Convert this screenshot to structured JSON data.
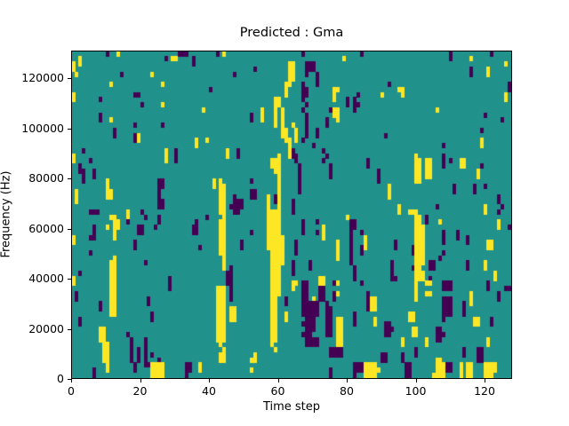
{
  "figure": {
    "background": "#ffffff"
  },
  "chart_data": {
    "type": "heatmap",
    "title": "Predicted : Gma",
    "xlabel": "Time step",
    "ylabel": "Frequency (Hz)",
    "xlim": [
      0,
      128
    ],
    "ylim": [
      0,
      131072
    ],
    "x_ticks": [
      0,
      20,
      40,
      60,
      80,
      100,
      120
    ],
    "y_ticks": [
      0,
      20000,
      40000,
      60000,
      80000,
      100000,
      120000
    ],
    "grid_cols": 128,
    "grid_rows": 64,
    "legend": "none",
    "colormap": "viridis-3-level",
    "value_colors": {
      ".": "#21918c",
      "p": "#440154",
      "y": "#fde725"
    },
    "grid_legend": "rows top-to-bottom = high-to-low frequency; '.'=mid(teal) 'p'=low(purple) 'y'=high(yellow)",
    "grid": [
      [
        "..........p..y..",
        "...............p",
        "pp........p.y...",
        "................",
        "...p............",
        "....p...........",
        "..............p.",
        "..........p....."
      ],
      [
        "..y.............",
        "...........p.yy.",
        "...p............",
        "................",
        "...............y",
        "................",
        "..............p.",
        "....y..........."
      ],
      [
        "y.y.............",
        "................",
        "...p............",
        "...............y",
        "y...ppp.........",
        "................",
        "................",
        "..............y."
      ],
      [
        "y...............",
        "................",
        "................",
        ".....p.........y",
        "y...ppp.........",
        "................",
        "................",
        "....p....y......"
      ],
      [
        ".y............p.",
        ".......y........",
        "...............p",
        "...............y",
        "y...p..p........",
        "................",
        "................",
        "....p....y......"
      ],
      [
        "................",
        "................",
        "................",
        "...............y",
        "y......p........",
        "................",
        "................",
        "................"
      ],
      [
        "...........y....",
        "..........y.....",
        "................",
        "..............yy",
        "...p...p........",
        "............p...",
        "................",
        "...............p"
      ],
      [
        "................",
        "................",
        "........p.......",
        "..............y.",
        "...pp.......yy..",
        "...............y",
        "y...............",
        "...............p"
      ],
      [
        "y...............",
        "..pp............",
        "................",
        "..............y.",
        "...pp.......y...",
        "...p......y.....",
        "y...............",
        "..............y."
      ],
      [
        "y.......p.......",
        "................",
        "................",
        "...........yy...",
        "...p........y...",
        "p.p.............",
        "................",
        "..............y."
      ],
      [
        "................",
        "....p.....y.....",
        "................",
        "...........yy...",
        "....p...........",
        "p.pp............",
        "................",
        "................"
      ],
      [
        "................",
        "................",
        "......y.........",
        ".......y...y.y..",
        "...p.......pyy..",
        "..p.............",
        "..........y.....",
        "................"
      ],
      [
        "........p.......",
        "................",
        "................",
        "....p..y...y.y..",
        "....p.......yy..",
        "................",
        "................",
        "........p......."
      ],
      [
        "........p..y....",
        "................",
        "................",
        "....p..y...y.y..",
        "....p.....p..y..",
        "................",
        "................",
        ".............p.."
      ],
      [
        "................",
        "..p.......p.....",
        "................",
        "...........y.y..",
        "y...p.....p.....",
        "................",
        "................",
        "................"
      ],
      [
        "............p...",
        "................",
        "................",
        ".............yy.",
        ".y..p..p........",
        "................",
        "................",
        ".......p........"
      ],
      [
        "............p...",
        "..py............",
        "................",
        ".............yy.",
        ".y..p..p........",
        "...........p....",
        "................",
        "................"
      ],
      [
        "................",
        "..py............",
        "....y..y........",
        "..............yy",
        ".y.p............",
        "................",
        "................",
        ".......y........"
      ],
      [
        "................",
        "................",
        "....y...........",
        "...............y",
        "......p.........",
        "................",
        "............p...",
        ".......y........"
      ],
      [
        "...p............",
        "...........y..p.",
        ".............y..",
        "p..............y",
        "p........p......",
        "................",
        "................",
        "................"
      ],
      [
        "y...............",
        "...........y..p.",
        ".............y..",
        "p...........y..y",
        "pp........p.....",
        "................",
        "....y.......p...",
        "................"
      ],
      [
        "y....p..........",
        "...........y..p.",
        "................",
        "..........yyy...",
        ".p.......p......",
        "......p.........",
        "....yy.yy...p.p.",
        ".yy............."
      ],
      [
        "..p.............",
        "................",
        "................",
        "..........yyy...",
        "..p........p....",
        "......p.........",
        "....yy.yy...p...",
        ".yy....p........"
      ],
      [
        "..pp..p.........",
        "................",
        "................",
        "...........yy...",
        "..p........p....",
        ".........p......",
        "....yy.yy.......",
        "......y........."
      ],
      [
        "...p..p.........",
        "................",
        "................",
        "............y...",
        "..p........p....",
        ".........p......",
        "....yy.yy.......",
        "......y........."
      ],
      [
        "...p......y.....",
        ".........pp.....",
        ".........y.y....",
        "....p.......y...",
        "..p.............",
        ".........p......",
        "....yy..........",
        "................"
      ],
      [
        "..........y.....",
        ".........pp.....",
        ".........y.yy...",
        "............y...",
        "..p.............",
        "............y...",
        "...............p",
        ".....p..p......."
      ],
      [
        ".y........yy....",
        ".........p......",
        "...........yy...",
        "....pp......y...",
        "..p.............",
        "............y...",
        "...............p",
        ".....p.........."
      ],
      [
        ".y........yy....",
        ".........p......",
        "...........yy..p",
        "....pp...y.py...",
        "................",
        "............y...",
        "................",
        "............p..."
      ],
      [
        ".y..............",
        ".........pp.....",
        "...........yy..p",
        "pp.......y.py...",
        "p...............",
        "................",
        "................",
        "............p..."
      ],
      [
        "................",
        ".........pp.....",
        "...........yy.pp",
        "pp.......y..y...",
        "p...............",
        "...............y",
        "..........p.....",
        "........y....p.."
      ],
      [
        ".....ppp........",
        "y...p...........",
        "...........yy..p",
        "p........yyyy...",
        "p...............",
        "...............y",
        "..yyy...........",
        "........y...p..."
      ],
      [
        "...........yy...",
        "y....p...p......",
        ".......p....y...",
        ".........yyyy...",
        "................",
        "y...............",
        "....yy.p........",
        "................"
      ],
      [
        "............yy..",
        "p........p......",
        "....p......yy...",
        ".........yyyy...",
        "...p...p........",
        ".pp.............",
        "....yy.p...y....",
        "............y..."
      ],
      [
        "......p...y.yy..",
        "...pp...p.......",
        "...pp......yy...",
        ".........yyyy...",
        "...p.....y......",
        ".pp.............",
        "....yyy.........",
        "............y..p"
      ],
      [
        "......p.....y...",
        "...pp...........",
        "...pp......yy...",
        "....p....yyyy...",
        "...p...p.y......",
        ".p..p...........",
        "....yyy.....p...",
        "p..............."
      ],
      [
        "y....pp.....y...",
        "................",
        "...........yy...",
        ".........yyyyy..",
        ".........y......",
        ".p...y..........",
        "....yyy.....p...",
        "p..p............"
      ],
      [
        "y...............",
        "..p.............",
        "...........yy...",
        ".p.......yyyyy..",
        ".p...........y..",
        ".p...y........p.",
        "....yyy.....p...",
        "...p.....yy....."
      ],
      [
        "................",
        "..p.............",
        ".....p.....yy...",
        ".p.......yyyyy..",
        ".p...........y..",
        ".p..py........p.",
        "...pyyy.........",
        ".........yy....."
      ],
      [
        ".....p..........",
        "................",
        "...........yy...",
        "..........yyyy..",
        ".p...........y..",
        ".p..p...........",
        "...pyyy.....p...",
        "................"
      ],
      [
        "............y...",
        "................",
        "............y...",
        "..........yyyy..",
        ".............y..",
        ".p..............",
        "....yyy....p....",
        "................"
      ],
      [
        "...........yy...",
        ".....p..........",
        "............y...",
        "..........yyyy..",
        "p....p..........",
        ".p...........p..",
        "....yyy.pp......",
        "...p....y......."
      ],
      [
        "...........yy...",
        "................",
        "............y.p.",
        "..........yyy...",
        "p....p..........",
        "..p..........p..",
        "...pyy..pp......",
        "...p....y......."
      ],
      [
        "..p........yy...",
        "................",
        ".............pp.",
        "..........yyy...",
        "p...............",
        "..p..........p..",
        "....yyy.........",
        "...........y...."
      ],
      [
        "y..........yy...",
        "............p...",
        ".............pp.",
        "..........yyy...",
        "........yy......",
        "..p..........pp.",
        "....yyy.p.......",
        "...........y...."
      ],
      [
        "y..........yy...",
        "............p...",
        ".............pp.",
        "..........yyy...",
        "yy.pp...yy..py..",
        "....p...........",
        "....y..yy...ppp.",
        ".........p......"
      ],
      [
        "...........yy...",
        "............p...",
        "..........yyy.p.",
        "..........yyy...",
        "y..pp...pp......",
        "................",
        "....y.......ppp.",
        ".........p....pp"
      ],
      [
        ".p.........yy...",
        "................",
        "..........yyy.p.",
        "..........yyy...",
        "...pp...pp..py..",
        "......p.........",
        "....y..yy.......",
        "....y.......p..."
      ],
      [
        ".p.........yy...",
        "......p.........",
        "..........yyy.p.",
        "..........yy..p.",
        "...pp.y.pp..p...",
        "......pyy.......",
        "....y.......ppp.",
        "....y.......p..."
      ],
      [
        "........p..yy...",
        "......p.........",
        "..........yyy...",
        "..........yy..p.",
        "...ppppp..p.....",
        "......pyy.......",
        "............ppp.",
        "..p.y..........."
      ],
      [
        "........p..yy...",
        "................",
        "..........yyy.yy",
        "..........yy....",
        "...ppppp..pp....",
        "......pyy.......",
        "............ppp.",
        "..p............."
      ],
      [
        "...........yy...",
        ".......p........",
        "..........yyy.yy",
        "..........yy..y.",
        "...ppppp..pp....",
        "..p.............",
        "..yy........ppp.",
        "..p............."
      ],
      [
        "..p.............",
        ".......p........",
        "..........yyy.yy",
        "..........yy..y.",
        "....ppp...pp.yy.",
        "..p.....y.......",
        "..yy........p...",
        ".....yy...p....."
      ],
      [
        "..p.............",
        "................",
        "..........yyy...",
        "..........yy....",
        "...pppp...pp.yy.",
        "..p.....y..pp...",
        "................",
        ".....yy...p....."
      ],
      [
        "........yy......",
        "................",
        "..........yyy...",
        "..........yy....",
        "....ppp...pp.yy.",
        "...........ppp..",
        "...yy.....pp....",
        "................"
      ],
      [
        "........yy......",
        "p...............",
        "..........yyy...",
        "..........yy....",
        "...ppp....pp.yy.",
        "...........pp...",
        "...yy.....ppp...",
        "................"
      ],
      [
        "........yy......",
        ".p...p..........",
        "..........yyy...",
        "..........yy....",
        "....pppp.....yy.",
        "................",
        "y......y..pp....",
        ".........y......"
      ],
      [
        ".........yy.....",
        ".p...p..........",
        "...........y....",
        "..........y.....",
        "....pppp.....yy.",
        "................",
        "y......y........",
        ".........y......"
      ],
      [
        ".........yy.....",
        ".p.p.p..........",
        "............y...",
        "...........y....",
        "...........pppp.",
        "................",
        "....p...........",
        "..p...pp........"
      ],
      [
        ".........yy.....",
        ".p.p.p.p........",
        "...........yy...",
        ".....y..........",
        "...........pppp.",
        "..........pp....",
        "p...p...........",
        "..p...pp........"
      ],
      [
        ".........yy.....",
        ".p.p.p...p......",
        "...........yy...",
        "....yy..........",
        "................",
        "..........pp....",
        "p.........yy....",
        "......pp........"
      ],
      [
        "..........y.....",
        "..p..ppyyyy.....",
        ".pp..y..........",
        "................",
        "................",
        "..pppyyyy.......",
        ".pp.......yyypp.",
        ".y.yy...yyyy...."
      ],
      [
        "......p...y.....",
        "..p....yyyy.....",
        ".pp..y..........",
        "....y...........",
        "...........p....",
        "..pppyyyyy......",
        ".pp.......yyypp.",
        ".y.yy...yyyy...."
      ],
      [
        "......p.........",
        ".......yyyy.....",
        ".p..............",
        "................",
        "...........p....",
        "..p..yyyy.......",
        ".pp......yyyy...",
        ".y.yy...yyy....."
      ]
    ]
  }
}
